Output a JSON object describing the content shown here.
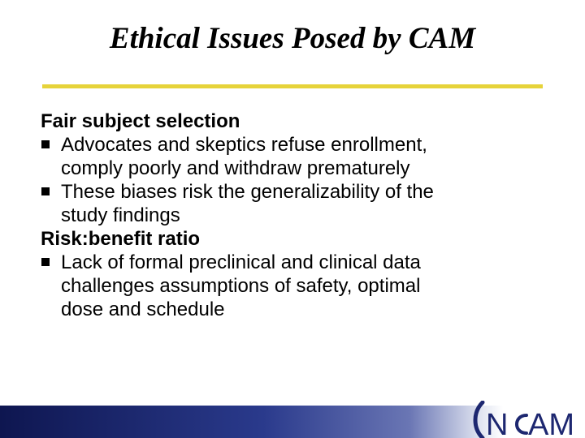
{
  "slide": {
    "title": "Ethical Issues Posed by CAM",
    "sections": [
      {
        "heading": "Fair subject selection",
        "bullets": [
          "Advocates and skeptics refuse enrollment,",
          "comply poorly and withdraw prematurely",
          "These biases risk the generalizability of the",
          "study findings"
        ]
      },
      {
        "heading": "Risk:benefit ratio",
        "bullets": [
          "Lack of formal preclinical and clinical data",
          "challenges assumptions of safety, optimal",
          "dose and schedule"
        ]
      }
    ]
  },
  "footer": {
    "logo": {
      "left": "N",
      "right": "AM"
    }
  },
  "colors": {
    "rule": "#e6d33a",
    "footer_dark": "#0e1650",
    "logo": "#1d2770"
  }
}
